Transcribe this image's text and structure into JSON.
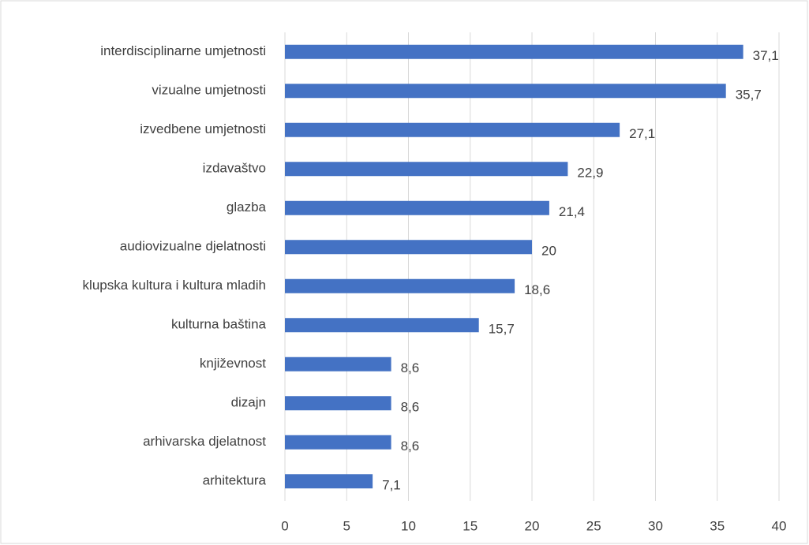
{
  "chart_data": {
    "type": "bar",
    "orientation": "horizontal",
    "categories": [
      "interdisciplinarne umjetnosti",
      "vizualne umjetnosti",
      "izvedbene umjetnosti",
      "izdavaštvo",
      "glazba",
      "audiovizualne djelatnosti",
      "klupska kultura i kultura mladih",
      "kulturna baština",
      "književnost",
      "dizajn",
      "arhivarska djelatnost",
      "arhitektura"
    ],
    "values": [
      37.1,
      35.7,
      27.1,
      22.9,
      21.4,
      20,
      18.6,
      15.7,
      8.6,
      8.6,
      8.6,
      7.1
    ],
    "value_labels": [
      "37,1",
      "35,7",
      "27,1",
      "22,9",
      "21,4",
      "20",
      "18,6",
      "15,7",
      "8,6",
      "8,6",
      "8,6",
      "7,1"
    ],
    "color": "#4472c4",
    "xlim": [
      0,
      40
    ],
    "xticks": [
      0,
      5,
      10,
      15,
      20,
      25,
      30,
      35,
      40
    ],
    "grid": true
  }
}
